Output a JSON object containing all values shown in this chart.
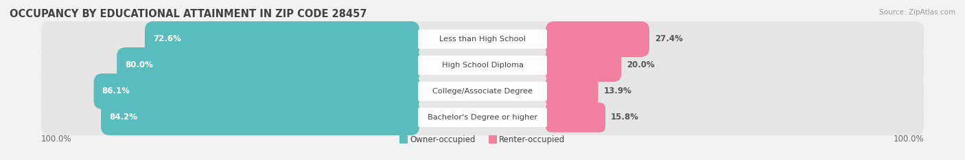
{
  "title": "OCCUPANCY BY EDUCATIONAL ATTAINMENT IN ZIP CODE 28457",
  "source": "Source: ZipAtlas.com",
  "categories": [
    "Less than High School",
    "High School Diploma",
    "College/Associate Degree",
    "Bachelor's Degree or higher"
  ],
  "owner_values": [
    72.6,
    80.0,
    86.1,
    84.2
  ],
  "renter_values": [
    27.4,
    20.0,
    13.9,
    15.8
  ],
  "owner_color": "#5bbcbe",
  "renter_color": "#f07fa0",
  "bg_color": "#f2f2f2",
  "row_bg_color": "#e6e6e6",
  "owner_label": "Owner-occupied",
  "renter_label": "Renter-occupied",
  "left_label": "100.0%",
  "right_label": "100.0%",
  "title_fontsize": 10.5,
  "source_fontsize": 7.5,
  "legend_fontsize": 8.5,
  "value_fontsize": 8.5,
  "category_fontsize": 8.2
}
